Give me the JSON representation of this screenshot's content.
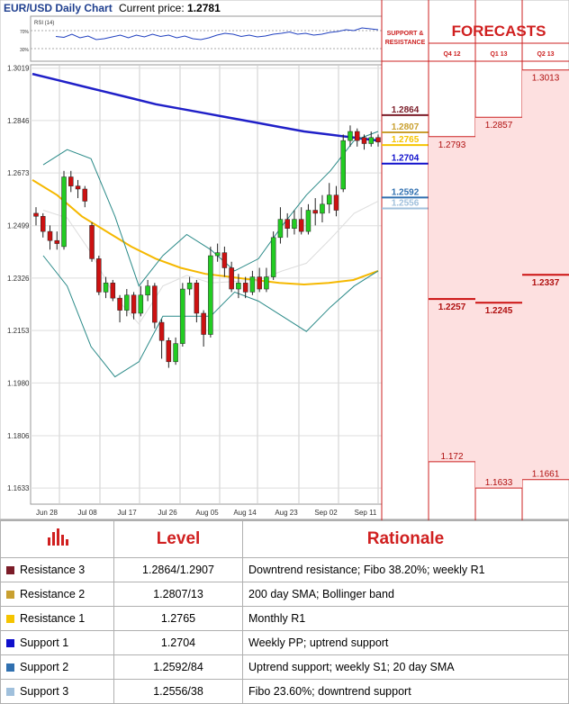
{
  "header": {
    "title": "EUR/USD Daily Chart",
    "current_price_label": "Current price:",
    "current_price": "1.2781"
  },
  "rsi": {
    "label": "RSI (14)",
    "upper": "70%",
    "lower": "30%",
    "values": [
      55,
      53,
      60,
      52,
      56,
      48,
      50,
      54,
      58,
      52,
      58,
      54,
      60,
      55,
      58,
      52,
      56,
      50,
      48,
      52,
      58,
      62,
      60,
      55,
      58,
      54,
      56,
      60,
      62,
      65,
      60,
      62,
      58,
      60,
      64,
      66,
      70,
      68,
      74,
      72,
      70
    ]
  },
  "support_resistance_title": "SUPPORT & RESISTANCE",
  "forecasts_title": "FORECASTS",
  "forecast_columns": [
    "Q4 12",
    "Q1 13",
    "Q2 13"
  ],
  "chart_data": {
    "type": "candlestick",
    "title": "EUR/USD Daily Chart",
    "yticks": [
      "1.3019",
      "1.2846",
      "1.2673",
      "1.2499",
      "1.2326",
      "1.2153",
      "1.1980",
      "1.1806",
      "1.1633"
    ],
    "ylim": [
      1.158,
      1.303
    ],
    "xticks": [
      "Jun 28",
      "Jul 08",
      "Jul 17",
      "Jul 26",
      "Aug 05",
      "Aug 14",
      "Aug 23",
      "Sep 02",
      "Sep 11"
    ],
    "candles": [
      [
        1.254,
        1.253,
        1.256,
        1.25
      ],
      [
        1.253,
        1.248,
        1.254,
        1.246
      ],
      [
        1.248,
        1.245,
        1.25,
        1.242
      ],
      [
        1.245,
        1.244,
        1.248,
        1.242
      ],
      [
        1.243,
        1.266,
        1.268,
        1.242
      ],
      [
        1.266,
        1.263,
        1.268,
        1.261
      ],
      [
        1.263,
        1.262,
        1.265,
        1.259
      ],
      [
        1.262,
        1.258,
        1.263,
        1.256
      ],
      [
        1.25,
        1.239,
        1.251,
        1.238
      ],
      [
        1.239,
        1.228,
        1.24,
        1.227
      ],
      [
        1.228,
        1.231,
        1.233,
        1.226
      ],
      [
        1.231,
        1.226,
        1.232,
        1.225
      ],
      [
        1.226,
        1.222,
        1.227,
        1.218
      ],
      [
        1.222,
        1.227,
        1.229,
        1.22
      ],
      [
        1.227,
        1.221,
        1.228,
        1.219
      ],
      [
        1.221,
        1.227,
        1.23,
        1.22
      ],
      [
        1.227,
        1.23,
        1.232,
        1.225
      ],
      [
        1.23,
        1.218,
        1.231,
        1.216
      ],
      [
        1.218,
        1.212,
        1.219,
        1.206
      ],
      [
        1.212,
        1.205,
        1.213,
        1.203
      ],
      [
        1.205,
        1.211,
        1.213,
        1.204
      ],
      [
        1.211,
        1.229,
        1.231,
        1.21
      ],
      [
        1.229,
        1.231,
        1.233,
        1.227
      ],
      [
        1.231,
        1.221,
        1.232,
        1.218
      ],
      [
        1.221,
        1.214,
        1.222,
        1.21
      ],
      [
        1.214,
        1.24,
        1.243,
        1.213
      ],
      [
        1.24,
        1.241,
        1.244,
        1.238
      ],
      [
        1.241,
        1.236,
        1.243,
        1.233
      ],
      [
        1.236,
        1.229,
        1.238,
        1.228
      ],
      [
        1.229,
        1.231,
        1.234,
        1.226
      ],
      [
        1.231,
        1.228,
        1.233,
        1.226
      ],
      [
        1.228,
        1.233,
        1.235,
        1.227
      ],
      [
        1.233,
        1.229,
        1.236,
        1.228
      ],
      [
        1.229,
        1.233,
        1.236,
        1.228
      ],
      [
        1.233,
        1.246,
        1.248,
        1.232
      ],
      [
        1.246,
        1.252,
        1.256,
        1.244
      ],
      [
        1.252,
        1.249,
        1.254,
        1.246
      ],
      [
        1.249,
        1.252,
        1.255,
        1.247
      ],
      [
        1.252,
        1.248,
        1.256,
        1.247
      ],
      [
        1.248,
        1.255,
        1.257,
        1.247
      ],
      [
        1.255,
        1.254,
        1.259,
        1.25
      ],
      [
        1.254,
        1.257,
        1.26,
        1.251
      ],
      [
        1.257,
        1.26,
        1.264,
        1.254
      ],
      [
        1.26,
        1.255,
        1.263,
        1.253
      ],
      [
        1.262,
        1.278,
        1.28,
        1.261
      ],
      [
        1.278,
        1.281,
        1.283,
        1.276
      ],
      [
        1.281,
        1.278,
        1.282,
        1.276
      ],
      [
        1.279,
        1.277,
        1.28,
        1.275
      ],
      [
        1.277,
        1.279,
        1.281,
        1.276
      ],
      [
        1.279,
        1.2775,
        1.28,
        1.276
      ]
    ],
    "series": [
      {
        "values": [
          1.3,
          1.298,
          1.296,
          1.294,
          1.292,
          1.29,
          1.2885,
          1.287,
          1.2855,
          1.284,
          1.2825,
          1.281,
          1.28,
          1.279,
          1.278
        ]
      },
      {
        "values": [
          1.265,
          1.26,
          1.253,
          1.248,
          1.243,
          1.239,
          1.236,
          1.234,
          1.233,
          1.232,
          1.231,
          1.2305,
          1.231,
          1.232,
          1.235
        ]
      },
      {
        "values": [
          1.27,
          1.275,
          1.272,
          1.253,
          1.23,
          1.24,
          1.247,
          1.242,
          1.235,
          1.239,
          1.25,
          1.26,
          1.268,
          1.278,
          1.281
        ]
      },
      {
        "values": [
          1.24,
          1.23,
          1.21,
          1.2,
          1.205,
          1.22,
          1.22,
          1.22,
          1.228,
          1.225,
          1.22,
          1.215,
          1.223,
          1.23,
          1.235
        ]
      }
    ]
  },
  "support_resistance": [
    {
      "value": "1.2864",
      "color": "#7b1c28"
    },
    {
      "value": "1.2807",
      "color": "#c9a030"
    },
    {
      "value": "1.2765",
      "color": "#f5c400"
    },
    {
      "value": "1.2704",
      "color": "#1010cc"
    },
    {
      "value": "1.2592",
      "color": "#3070b0"
    },
    {
      "value": "1.2556",
      "color": "#a0c0dc"
    }
  ],
  "forecasts": [
    [
      "1.2793",
      "1.2257",
      "1.172"
    ],
    [
      "1.2857",
      "1.2245",
      "1.1633"
    ],
    [
      "1.3013",
      "1.2337",
      "1.1661"
    ]
  ],
  "table": {
    "headers": [
      "",
      "Level",
      "Rationale"
    ],
    "rows": [
      {
        "name": "Resistance 3",
        "level": "1.2864/1.2907",
        "rationale": "Downtrend resistance; Fibo 38.20%; weekly R1",
        "color": "#7b1c28"
      },
      {
        "name": "Resistance 2",
        "level": "1.2807/13",
        "rationale": "200 day SMA; Bollinger band",
        "color": "#c9a030"
      },
      {
        "name": "Resistance 1",
        "level": "1.2765",
        "rationale": "Monthly R1",
        "color": "#f5c400"
      },
      {
        "name": "Support 1",
        "level": "1.2704",
        "rationale": "Weekly PP; uptrend support",
        "color": "#1010cc"
      },
      {
        "name": "Support 2",
        "level": "1.2592/84",
        "rationale": "Uptrend support; weekly S1; 20 day SMA",
        "color": "#3070b0"
      },
      {
        "name": "Support 3",
        "level": "1.2556/38",
        "rationale": "Fibo 23.60%; downtrend support",
        "color": "#a0c0dc"
      }
    ]
  }
}
